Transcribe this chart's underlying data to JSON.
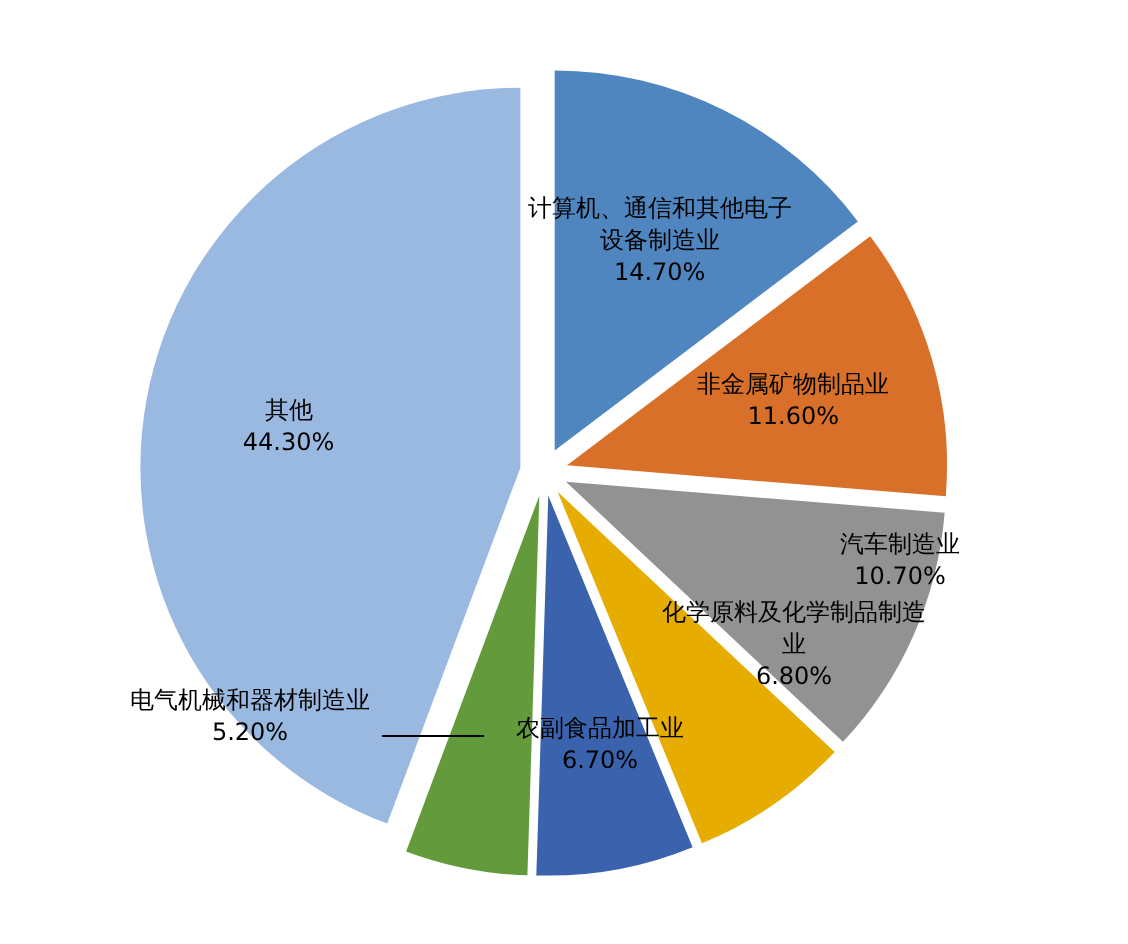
{
  "chart_data": {
    "type": "pie",
    "categories": [
      "计算机、通信和其他电子设备制造业",
      "非金属矿物制品业",
      "汽车制造业",
      "化学原料及化学制品制造业",
      "农副食品加工业",
      "电气机械和器材制造业",
      "其他"
    ],
    "values": [
      14.7,
      11.6,
      10.7,
      6.8,
      6.7,
      5.2,
      44.3
    ],
    "colors": [
      "#4f86c0",
      "#d9702a",
      "#929292",
      "#e6ac00",
      "#3b63ad",
      "#629a3c",
      "#9ab9e0"
    ],
    "value_labels": [
      "14.70%",
      "11.60%",
      "10.70%",
      "6.80%",
      "6.70%",
      "5.20%",
      "44.30%"
    ]
  }
}
